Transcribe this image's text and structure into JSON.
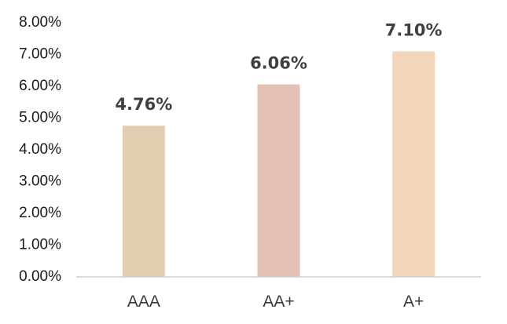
{
  "chart_data": {
    "type": "bar",
    "categories": [
      "AAA",
      "AA+",
      "A+"
    ],
    "values": [
      4.76,
      6.06,
      7.1
    ],
    "data_labels": [
      "4.76%",
      "6.06%",
      "7.10%"
    ],
    "colors": [
      "#e1cdb0",
      "#e5c1b5",
      "#f3d5bc"
    ],
    "ylim": [
      0,
      8
    ],
    "yticks": [
      0,
      1,
      2,
      3,
      4,
      5,
      6,
      7,
      8
    ],
    "ytick_labels": [
      "0.00%",
      "1.00%",
      "2.00%",
      "3.00%",
      "4.00%",
      "5.00%",
      "6.00%",
      "7.00%",
      "8.00%"
    ],
    "grid": false,
    "legend": "none"
  }
}
